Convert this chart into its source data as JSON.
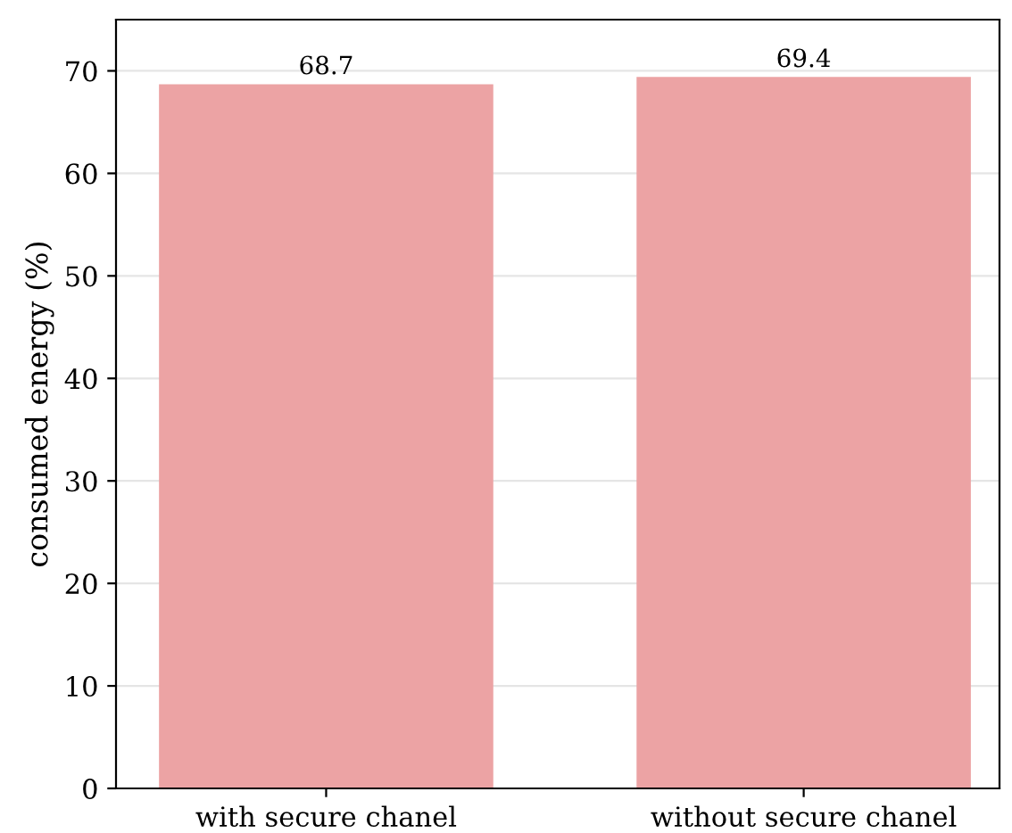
{
  "chart_data": {
    "type": "bar",
    "ylabel": "consumed energy (%)",
    "categories": [
      "with secure chanel",
      "without secure chanel"
    ],
    "values": [
      68.7,
      69.4
    ],
    "color": "#eca3a4",
    "ylim": [
      0,
      75
    ],
    "yticks": [
      0,
      10,
      20,
      30,
      40,
      50,
      60,
      70
    ],
    "grid": "y",
    "data_labels": true
  }
}
